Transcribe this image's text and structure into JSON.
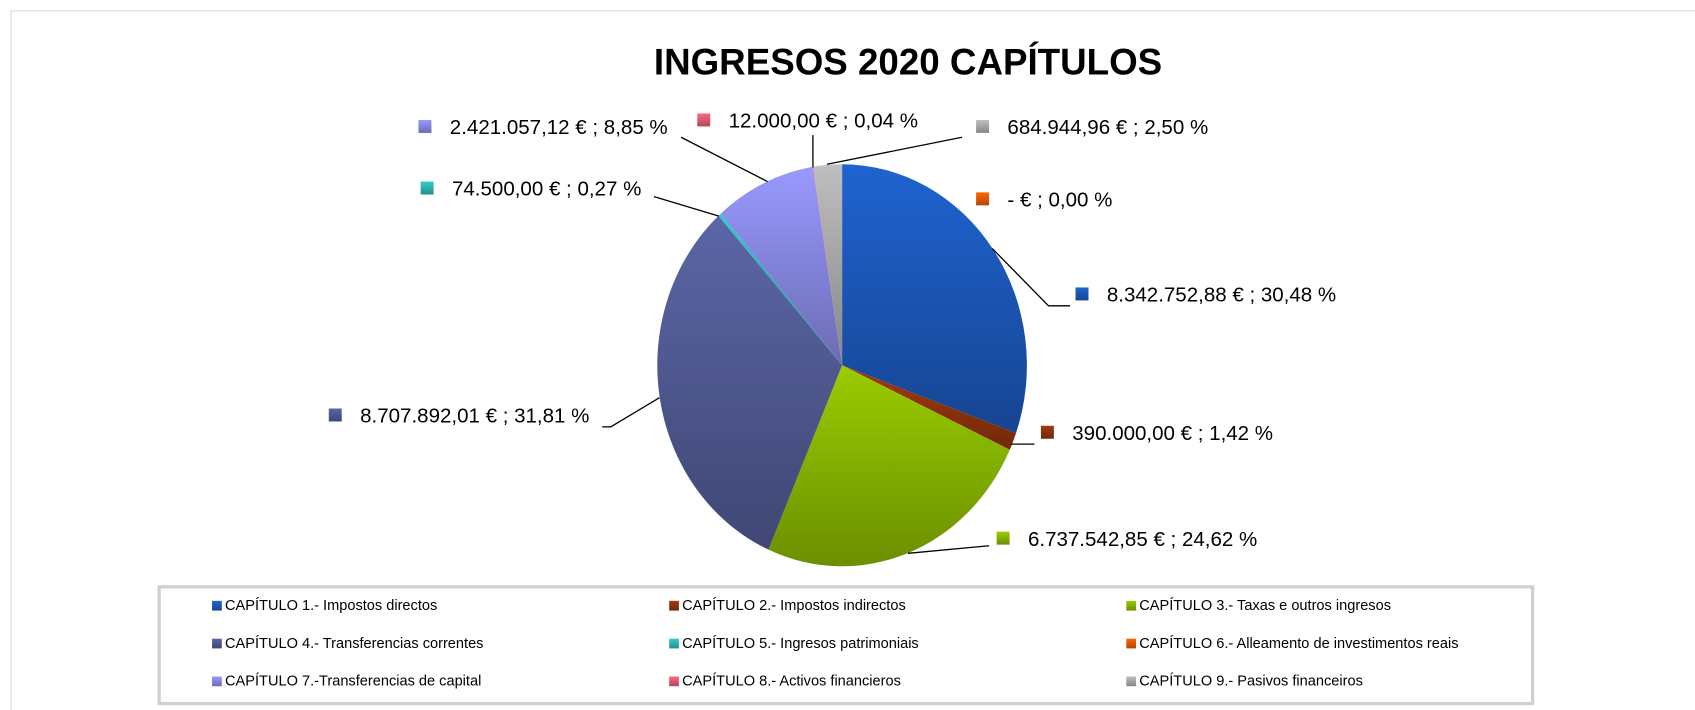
{
  "chart_data": {
    "type": "pie",
    "title": "INGRESOS 2020    CAPÍTULOS",
    "categories": [
      "CAPÍTULO 1.- Impostos directos",
      "CAPÍTULO 2.- Impostos indirectos",
      "CAPÍTULO 3.- Taxas e outros ingresos",
      "CAPÍTULO 4.- Transferencias correntes",
      "CAPÍTULO 5.- Ingresos patrimoniais",
      "CAPÍTULO 6.- Alleamento de investimentos reais",
      "CAPÍTULO 7.-Transferencias de capital",
      "CAPÍTULO 8.- Activos financieros",
      "CAPÍTULO 9.- Pasivos financeiros"
    ],
    "values": [
      8342752.88,
      390000,
      6737542.85,
      8707892.01,
      74500,
      0,
      2421057.12,
      12000,
      684944.96
    ],
    "value_labels": [
      "8.342.752,88 € ; 30,48 %",
      "390.000,00 € ; 1,42 %",
      "6.737.542,85 € ; 24,62 %",
      "8.707.892,01 € ; 31,81 %",
      "74.500,00 € ; 0,27 %",
      "-   € ; 0,00 %",
      "2.421.057,12 € ; 8,85 %",
      "12.000,00 € ; 0,04 %",
      "684.944,96 € ; 2,50 %"
    ],
    "colors": [
      "#1f63d0",
      "#a33a0c",
      "#99cc00",
      "#5b66a6",
      "#33cccc",
      "#ff6600",
      "#9999ff",
      "#ff6680",
      "#bfbfbf"
    ],
    "legend": "bottom"
  }
}
